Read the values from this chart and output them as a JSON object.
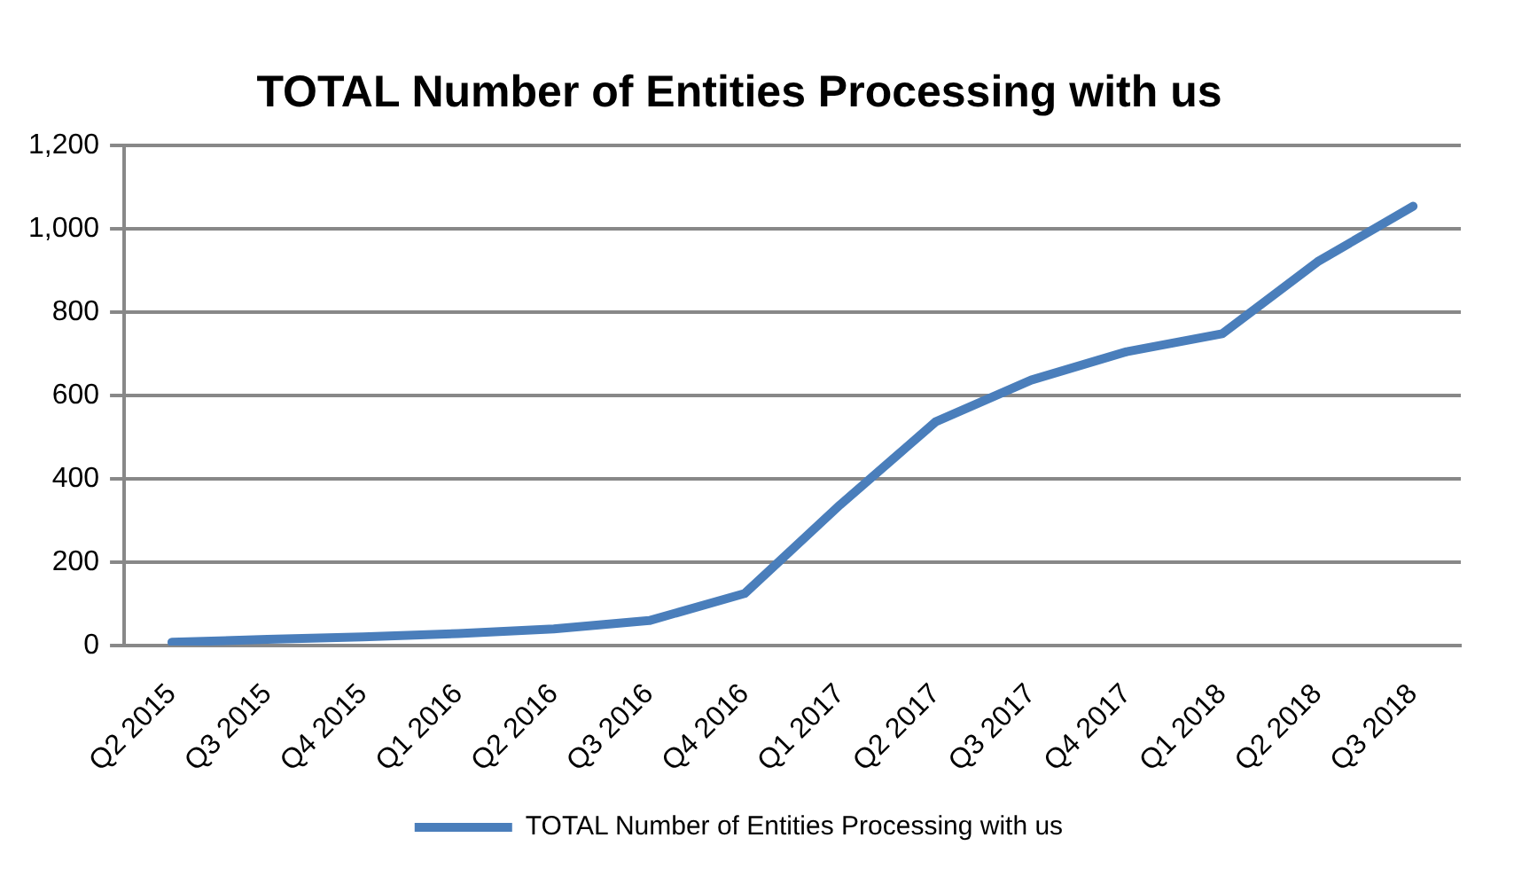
{
  "chart_data": {
    "type": "line",
    "title": "TOTAL Number of Entities Processing with us",
    "categories": [
      "Q2 2015",
      "Q3 2015",
      "Q4 2015",
      "Q1 2016",
      "Q2 2016",
      "Q3 2016",
      "Q4 2016",
      "Q1 2017",
      "Q2 2017",
      "Q3 2017",
      "Q4 2017",
      "Q1 2018",
      "Q2 2018",
      "Q3 2018"
    ],
    "series": [
      {
        "name": "TOTAL Number of Entities Processing with us",
        "color": "#4a7ebb",
        "values": [
          8,
          15,
          21,
          29,
          40,
          60,
          125,
          338,
          537,
          637,
          705,
          748,
          921,
          1054
        ]
      }
    ],
    "ylim": [
      0,
      1200
    ],
    "yticks": [
      {
        "value": 0,
        "label": "0"
      },
      {
        "value": 200,
        "label": "200"
      },
      {
        "value": 400,
        "label": "400"
      },
      {
        "value": 600,
        "label": "600"
      },
      {
        "value": 800,
        "label": "800"
      },
      {
        "value": 1000,
        "label": "1,000"
      },
      {
        "value": 1200,
        "label": "1,200"
      }
    ],
    "grid": "y",
    "legend": "bottom",
    "marker": "none",
    "line_style": "solid"
  }
}
